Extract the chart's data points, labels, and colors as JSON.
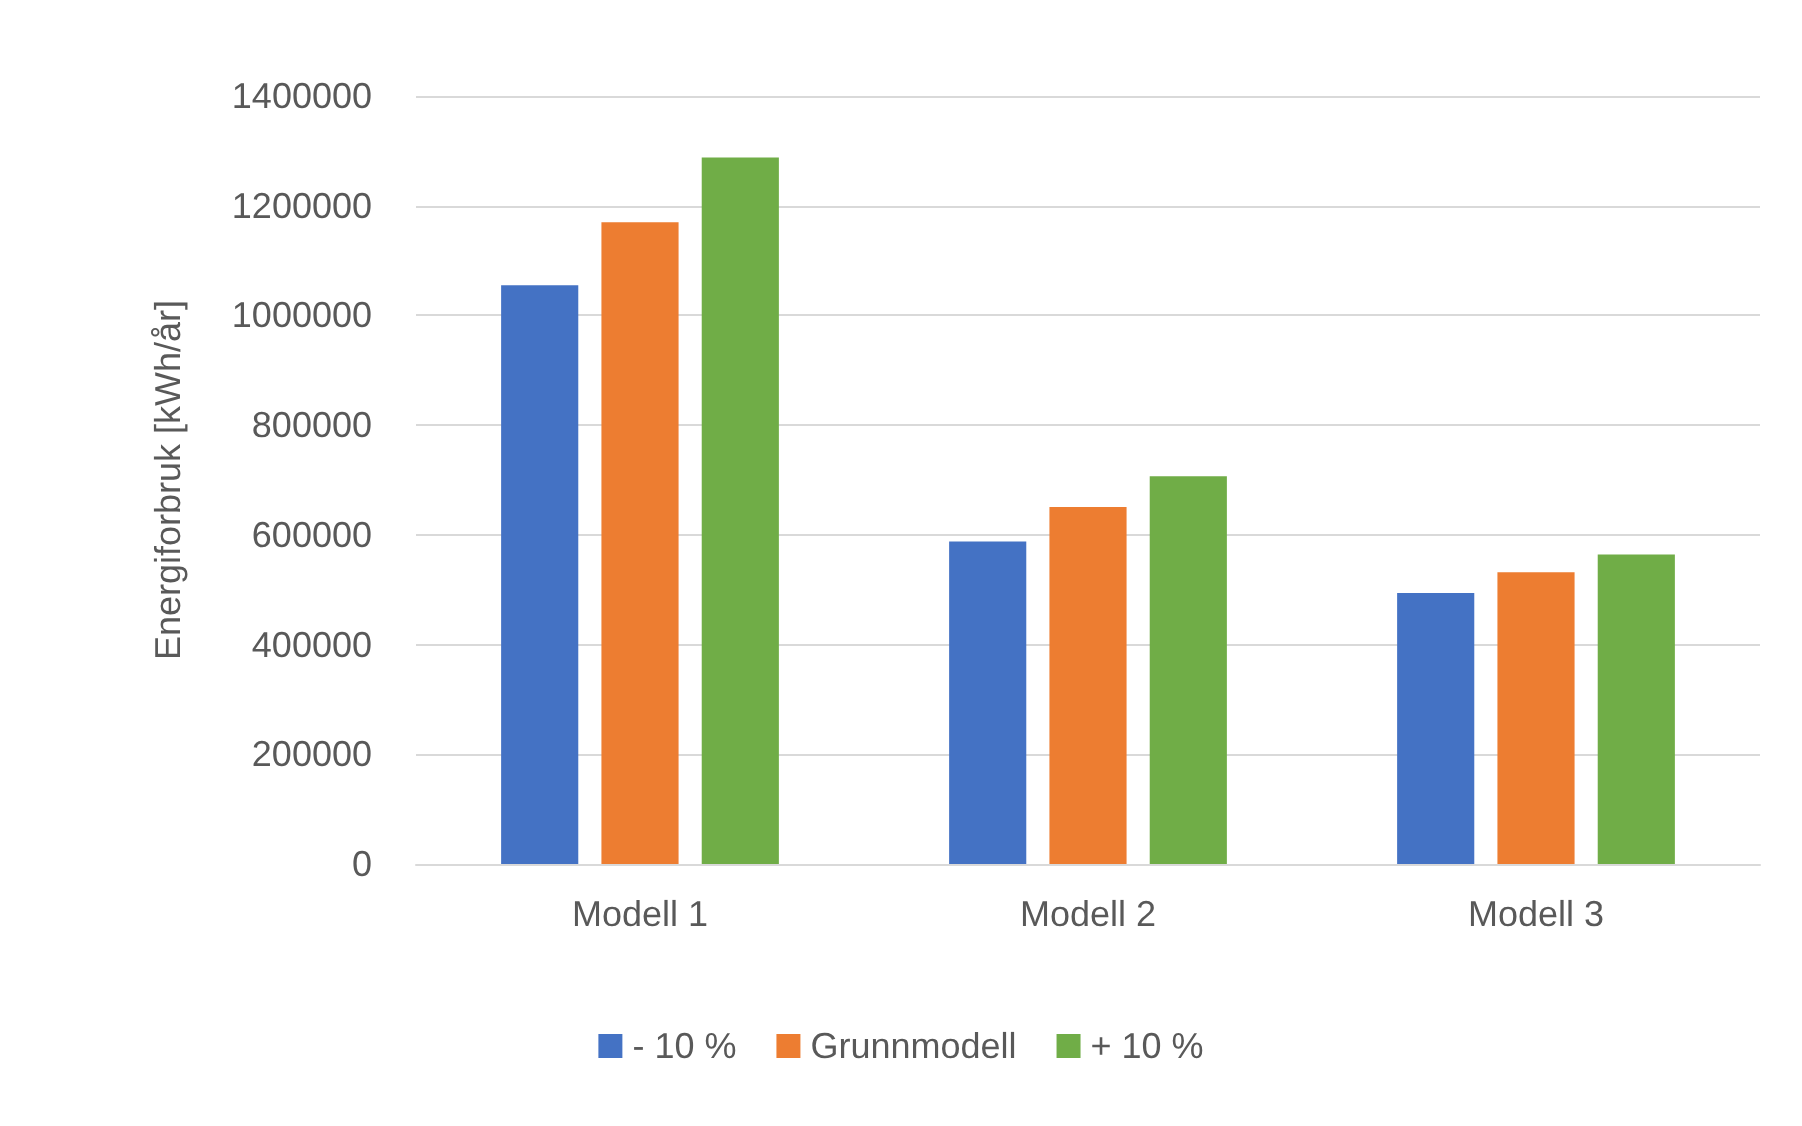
{
  "chart_data": {
    "type": "bar",
    "ylabel": "Energiforbruk [kWh/år]",
    "categories": [
      "Modell 1",
      "Modell 2",
      "Modell 3"
    ],
    "series": [
      {
        "name": "- 10 %",
        "color": "#4472c4",
        "values": [
          1055000,
          588000,
          494000
        ]
      },
      {
        "name": "Grunnmodell",
        "color": "#ed7d31",
        "values": [
          1170000,
          651000,
          532000
        ]
      },
      {
        "name": "+ 10 %",
        "color": "#70ad47",
        "values": [
          1288000,
          707000,
          564000
        ]
      }
    ],
    "ylim": [
      0,
      1400000
    ],
    "yticks": [
      0,
      200000,
      400000,
      600000,
      800000,
      1000000,
      1200000,
      1400000
    ],
    "grid": "y",
    "legend": "bottom"
  }
}
